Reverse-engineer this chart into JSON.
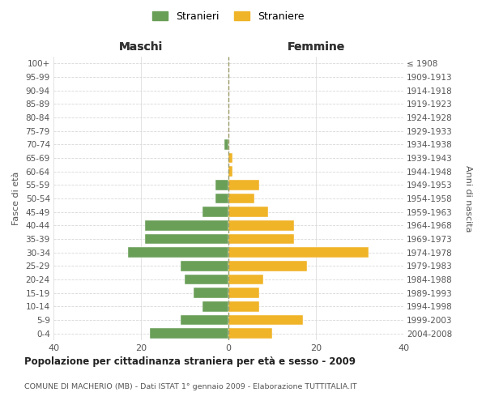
{
  "age_groups": [
    "0-4",
    "5-9",
    "10-14",
    "15-19",
    "20-24",
    "25-29",
    "30-34",
    "35-39",
    "40-44",
    "45-49",
    "50-54",
    "55-59",
    "60-64",
    "65-69",
    "70-74",
    "75-79",
    "80-84",
    "85-89",
    "90-94",
    "95-99",
    "100+"
  ],
  "birth_years": [
    "2004-2008",
    "1999-2003",
    "1994-1998",
    "1989-1993",
    "1984-1988",
    "1979-1983",
    "1974-1978",
    "1969-1973",
    "1964-1968",
    "1959-1963",
    "1954-1958",
    "1949-1953",
    "1944-1948",
    "1939-1943",
    "1934-1938",
    "1929-1933",
    "1924-1928",
    "1919-1923",
    "1914-1918",
    "1909-1913",
    "≤ 1908"
  ],
  "maschi": [
    18,
    11,
    6,
    8,
    10,
    11,
    23,
    19,
    19,
    6,
    3,
    3,
    0,
    0,
    1,
    0,
    0,
    0,
    0,
    0,
    0
  ],
  "femmine": [
    10,
    17,
    7,
    7,
    8,
    18,
    32,
    15,
    15,
    9,
    6,
    7,
    1,
    1,
    0,
    0,
    0,
    0,
    0,
    0,
    0
  ],
  "color_maschi": "#6a9f58",
  "color_femmine": "#f0b429",
  "title": "Popolazione per cittadinanza straniera per età e sesso - 2009",
  "subtitle": "COMUNE DI MACHERIO (MB) - Dati ISTAT 1° gennaio 2009 - Elaborazione TUTTITALIA.IT",
  "ylabel_left": "Fasce di età",
  "ylabel_right": "Anni di nascita",
  "xlabel_maschi": "Maschi",
  "xlabel_femmine": "Femmine",
  "legend_maschi": "Stranieri",
  "legend_femmine": "Straniere",
  "xlim": [
    -40,
    40
  ],
  "background_color": "#ffffff",
  "grid_color": "#d8d8d8"
}
